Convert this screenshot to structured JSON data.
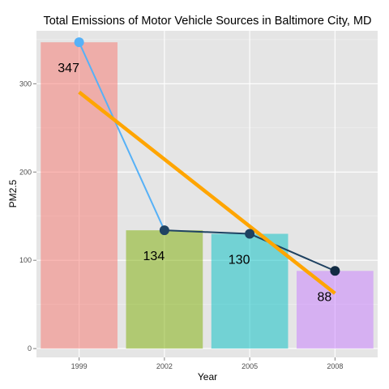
{
  "chart_data": {
    "type": "bar",
    "title": "Total Emissions of Motor Vehicle Sources in Baltimore City, MD",
    "xlabel": "Year",
    "ylabel": "PM2.5",
    "categories": [
      "1999",
      "2002",
      "2005",
      "2008"
    ],
    "values": [
      347,
      134,
      130,
      88
    ],
    "data_labels": [
      "347",
      "134",
      "130",
      "88"
    ],
    "bar_colors": [
      "#f8766d",
      "#7cae00",
      "#00bfc4",
      "#c77cff"
    ],
    "ylim": [
      -10,
      360
    ],
    "yticks": [
      0,
      100,
      200,
      300
    ],
    "ytick_labels": [
      "0",
      "100",
      "200",
      "300"
    ],
    "grid": true,
    "point_series": {
      "values": [
        347,
        134,
        130,
        88
      ],
      "color_range": [
        "#56b1f7",
        "#132b43"
      ]
    },
    "trend_line": {
      "start": 290.5,
      "end": 62.5,
      "color": "#ffa500"
    },
    "panel_background": "#e5e5e5",
    "grid_color": "#ffffff"
  }
}
